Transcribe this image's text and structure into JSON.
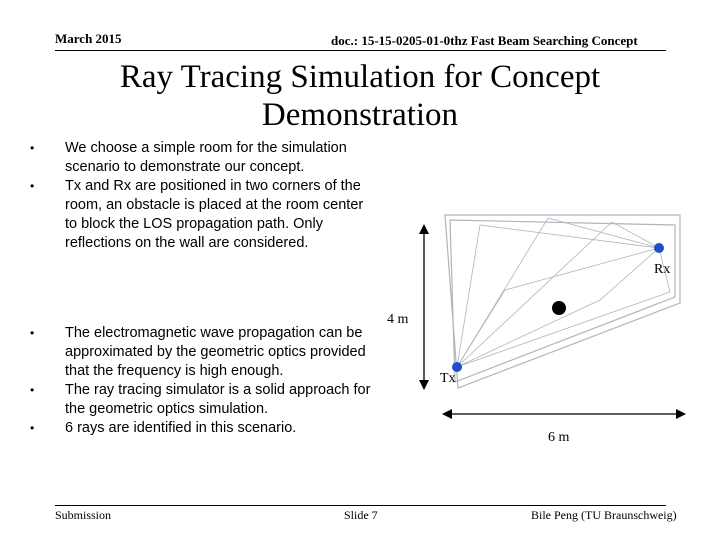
{
  "header": {
    "date": "March 2015",
    "doc": "doc.: 15-15-0205-01-0thz Fast Beam Searching Concept"
  },
  "title": "Ray Tracing Simulation for Concept Demonstration",
  "bullets": [
    "We choose a simple room for the simulation scenario to demonstrate our concept.",
    "Tx and Rx are positioned in two corners of the room, an obstacle is placed at the room center to block the LOS propagation path. Only reflections on the wall are considered.",
    "The electromagnetic wave propagation can be approximated by the geometric optics provided that the frequency is high enough.",
    "The ray tracing simulator is a solid approach for the geometric optics simulation.",
    "6 rays are identified in this scenario."
  ],
  "diagram": {
    "tx_label": "Tx",
    "rx_label": "Rx",
    "height_label": "4 m",
    "width_label": "6 m",
    "room_color": "#b0b4bc",
    "node_color": "#1f4fc4",
    "obstacle_color": "#000000"
  },
  "footer": {
    "left": "Submission",
    "center": "Slide 7",
    "right": "Bile Peng (TU Braunschweig)"
  }
}
